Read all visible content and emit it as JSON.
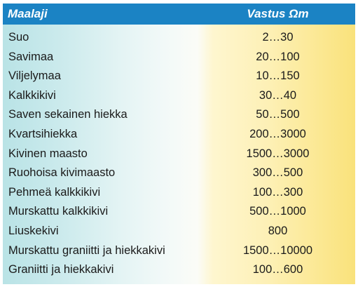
{
  "table": {
    "headers": {
      "soil": "Maalaji",
      "resistance": "Vastus Ωm"
    },
    "rows": [
      {
        "soil": "Suo",
        "resistance": "2…30"
      },
      {
        "soil": "Savimaa",
        "resistance": "20…100"
      },
      {
        "soil": "Viljelymaa",
        "resistance": "10…150"
      },
      {
        "soil": "Kalkkikivi",
        "resistance": "30…40"
      },
      {
        "soil": "Saven sekainen hiekka",
        "resistance": "50…500"
      },
      {
        "soil": "Kvartsihiekka",
        "resistance": "200…3000"
      },
      {
        "soil": "Kivinen maasto",
        "resistance": "1500…3000"
      },
      {
        "soil": "Ruohoisa kivimaasto",
        "resistance": "300…500"
      },
      {
        "soil": "Pehmeä kalkkikivi",
        "resistance": "100…300"
      },
      {
        "soil": "Murskattu kalkkikivi",
        "resistance": "500…1000"
      },
      {
        "soil": "Liuskekivi",
        "resistance": "800"
      },
      {
        "soil": "Murskattu graniitti ja hiekkakivi",
        "resistance": "1500…10000"
      },
      {
        "soil": "Graniitti ja hiekkakivi",
        "resistance": "100…600"
      }
    ]
  },
  "colors": {
    "header_bg": "#1b83c4",
    "header_text": "#ffffff",
    "left_tint": "#b9e3e6",
    "right_tint": "#f9e27b"
  }
}
